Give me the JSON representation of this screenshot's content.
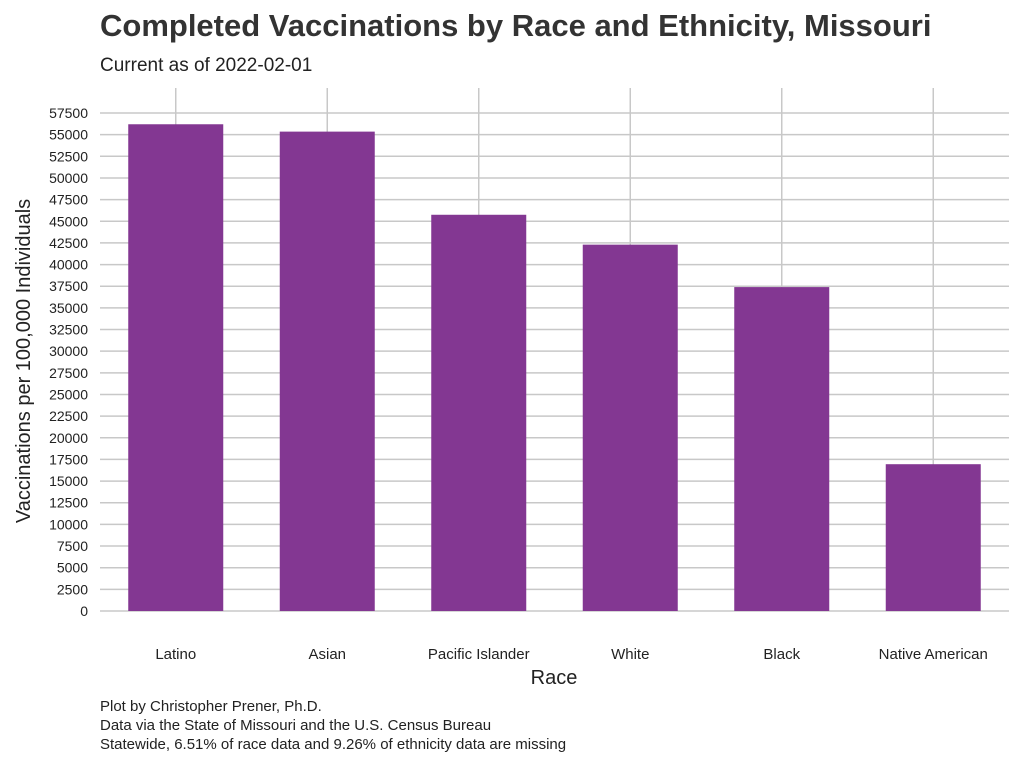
{
  "chart_data": {
    "type": "bar",
    "title": "Completed Vaccinations by Race and Ethnicity, Missouri",
    "subtitle": "Current as of 2022-02-01",
    "xlabel": "Race",
    "ylabel": "Vaccinations per 100,000 Individuals",
    "categories": [
      "Latino",
      "Asian",
      "Pacific Islander",
      "White",
      "Black",
      "Native American"
    ],
    "values": [
      56200,
      55350,
      45750,
      42300,
      37400,
      16950
    ],
    "ylim": [
      0,
      57500
    ],
    "y_ticks": [
      0,
      2500,
      5000,
      7500,
      10000,
      12500,
      15000,
      17500,
      20000,
      22500,
      25000,
      27500,
      30000,
      32500,
      35000,
      37500,
      40000,
      42500,
      45000,
      47500,
      50000,
      52500,
      55000,
      57500
    ],
    "grid": true,
    "bar_color": "#833792",
    "grid_color": "#c8c8c8",
    "captions": [
      "Plot by Christopher Prener, Ph.D.",
      "Data via the State of Missouri and the U.S. Census Bureau",
      "Statewide, 6.51% of race data and 9.26% of ethnicity data are missing"
    ]
  }
}
